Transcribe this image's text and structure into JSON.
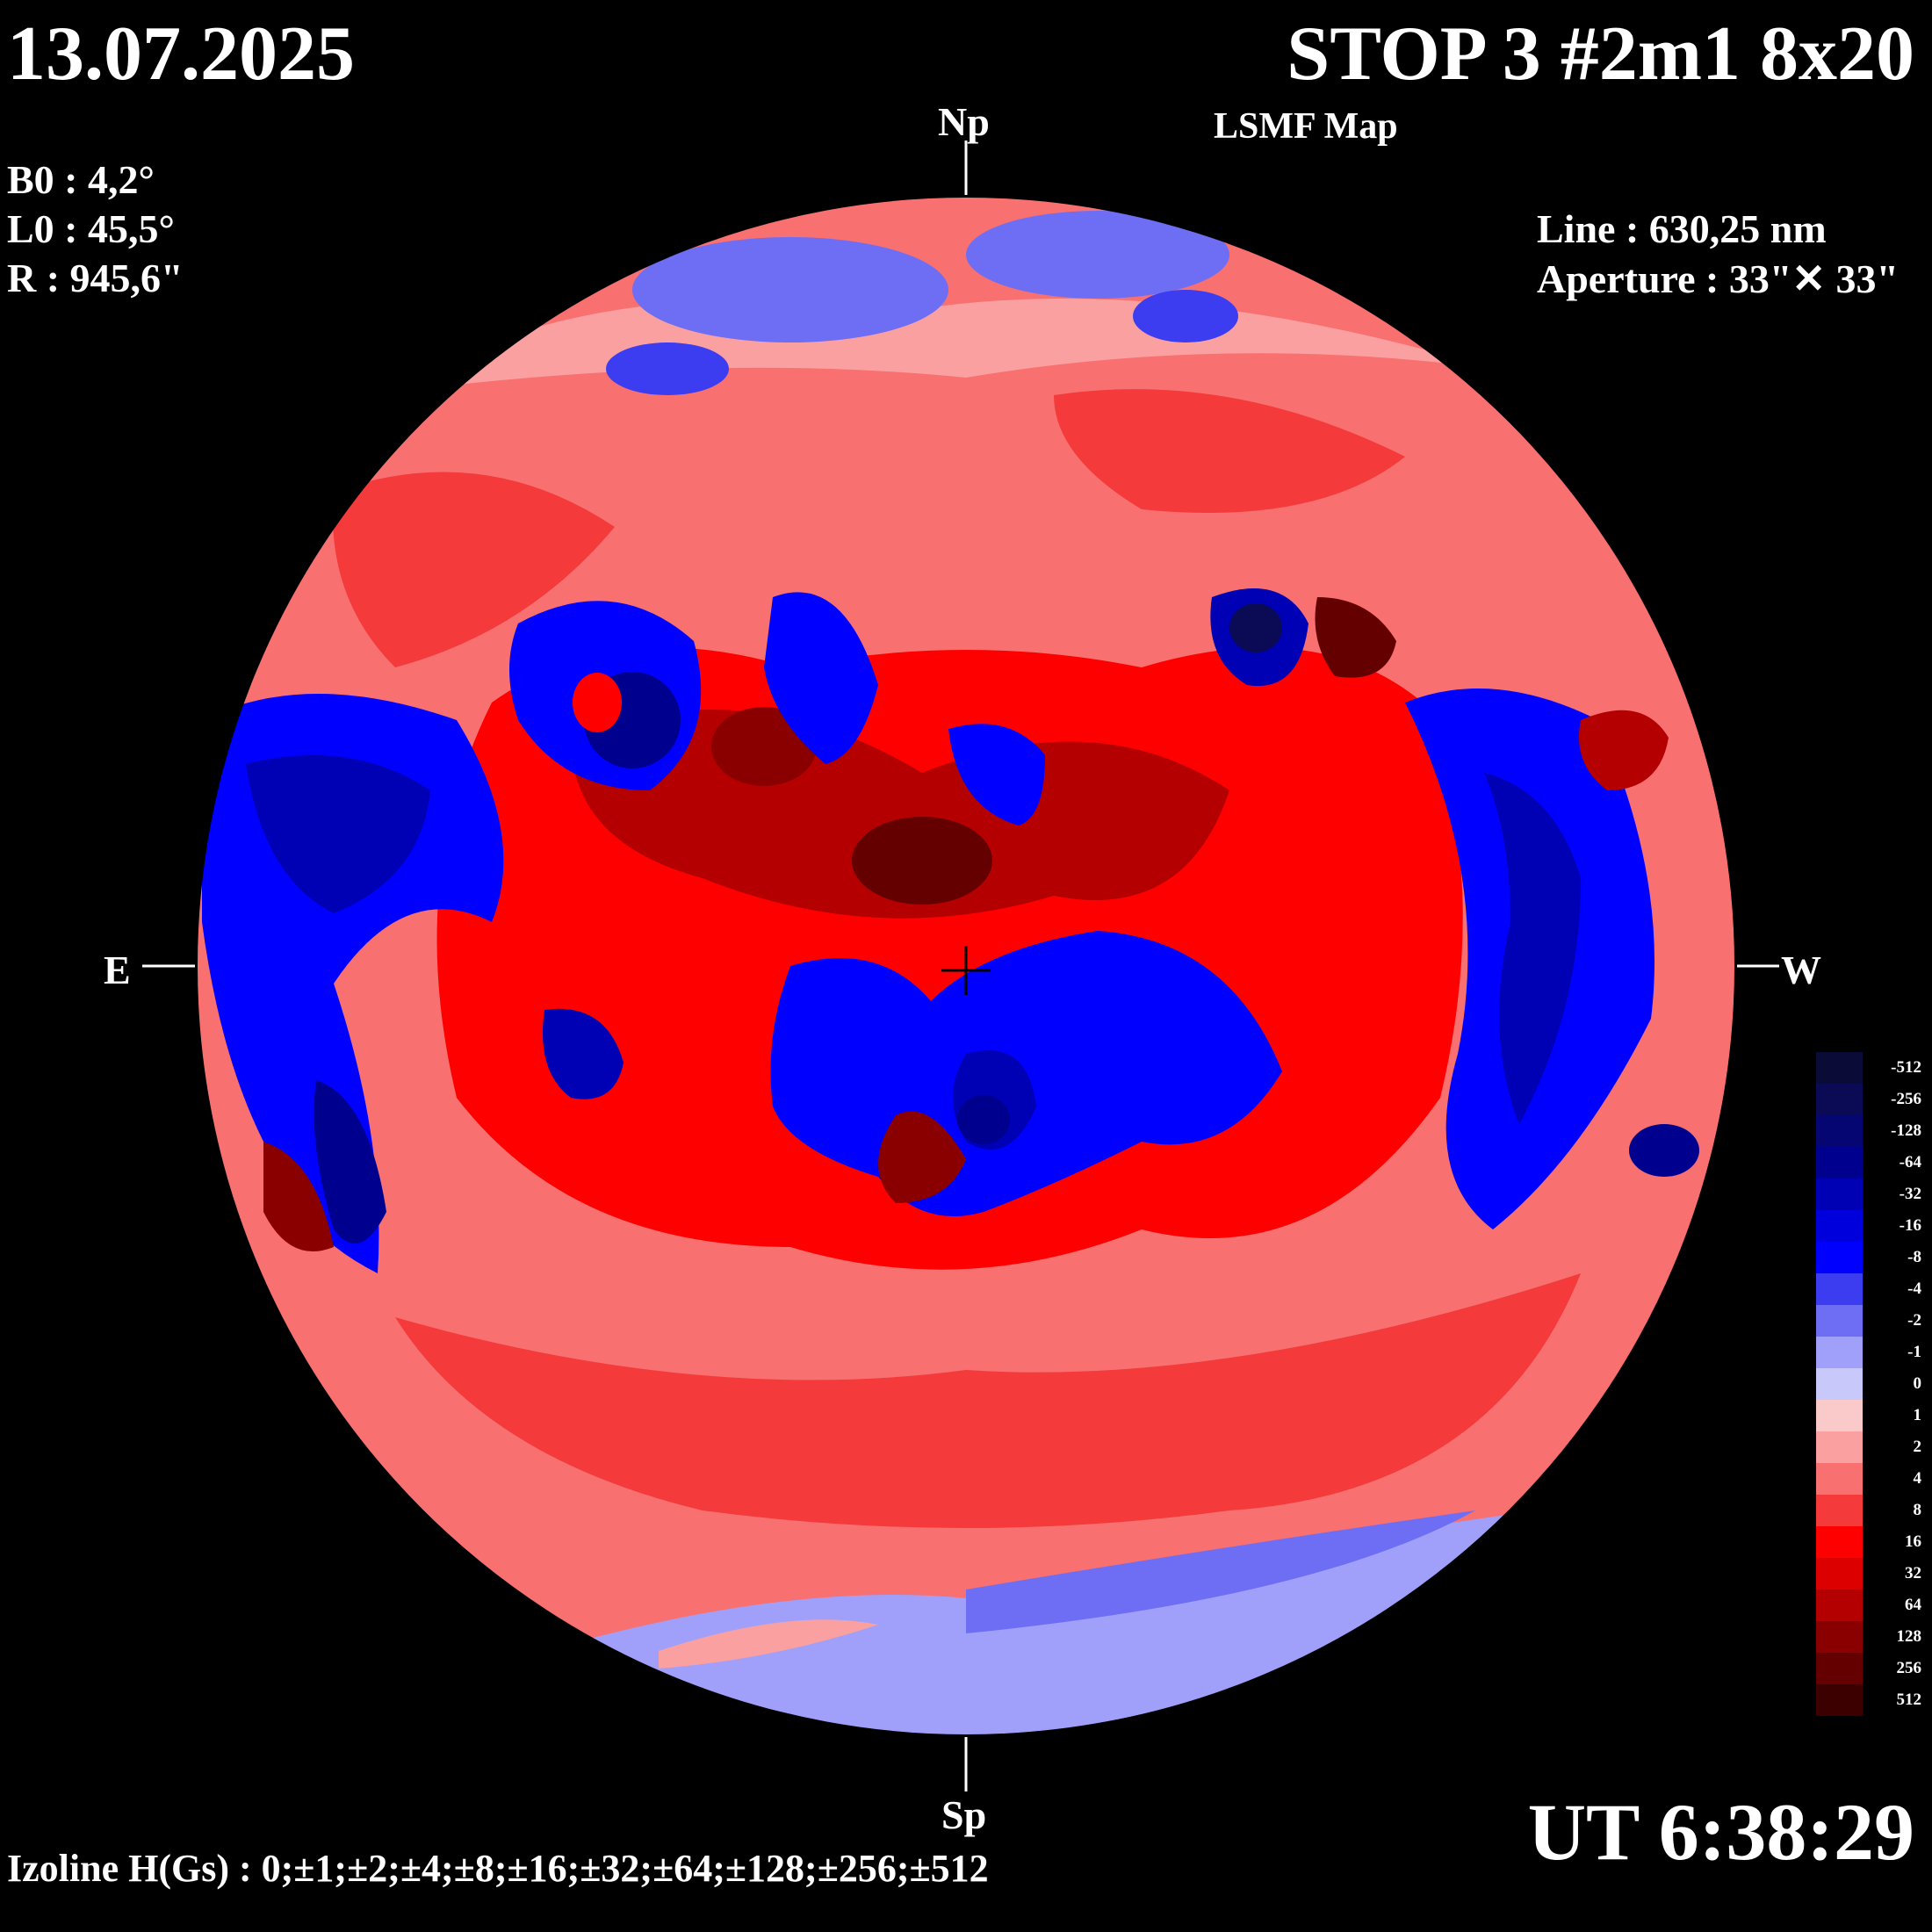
{
  "header": {
    "date": "13.07.2025",
    "title": "STOP 3 #2m1 8x20",
    "subtitle": "LSMF  Map"
  },
  "ephemeris": {
    "b0": "B0 : 4,2°",
    "l0": "L0 : 45,5°",
    "r": "R  : 945,6\""
  },
  "instrument": {
    "line": "Line :  630,25 nm",
    "aperture": "Aperture : 33\"✕ 33\""
  },
  "directions": {
    "north": "Np",
    "south": "Sp",
    "east": "E",
    "west": "W"
  },
  "time": "UT 6:38:29",
  "isolines": "Izoline H(Gs) : 0;±1;±2;±4;±8;±16;±32;±64;±128;±256;±512",
  "legend": {
    "levels": [
      "-512",
      "-256",
      "-128",
      "-64",
      "-32",
      "-16",
      "-8",
      "-4",
      "-2",
      "-1",
      "0",
      "1",
      "2",
      "4",
      "8",
      "16",
      "32",
      "64",
      "128",
      "256",
      "512"
    ],
    "colors": [
      "#0b0b38",
      "#0b0b55",
      "#060672",
      "#00008f",
      "#0000b4",
      "#0000dc",
      "#0000ff",
      "#3c3cf0",
      "#6e6ef5",
      "#a0a0fa",
      "#c8c8fa",
      "#facaca",
      "#fba0a0",
      "#f87070",
      "#f43a3a",
      "#ff0000",
      "#dc0000",
      "#b40000",
      "#8a0000",
      "#640000",
      "#3c0000"
    ]
  },
  "map_regions": {
    "background_field": "positive-weak",
    "positive_color": "#f43a3a",
    "negative_color": "#0000ff"
  }
}
